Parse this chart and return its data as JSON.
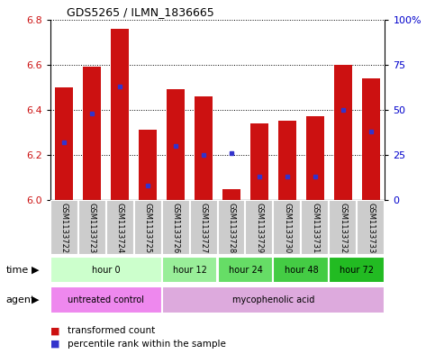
{
  "title": "GDS5265 / ILMN_1836665",
  "samples": [
    "GSM1133722",
    "GSM1133723",
    "GSM1133724",
    "GSM1133725",
    "GSM1133726",
    "GSM1133727",
    "GSM1133728",
    "GSM1133729",
    "GSM1133730",
    "GSM1133731",
    "GSM1133732",
    "GSM1133733"
  ],
  "transformed_counts": [
    6.5,
    6.59,
    6.76,
    6.31,
    6.49,
    6.46,
    6.05,
    6.34,
    6.35,
    6.37,
    6.6,
    6.54
  ],
  "percentile_ranks": [
    32,
    48,
    63,
    8,
    30,
    25,
    26,
    13,
    13,
    13,
    50,
    38
  ],
  "ylim": [
    6.0,
    6.8
  ],
  "yticks": [
    6.0,
    6.2,
    6.4,
    6.6,
    6.8
  ],
  "y2ticks": [
    0,
    25,
    50,
    75,
    100
  ],
  "bar_color": "#cc1111",
  "blue_color": "#3333cc",
  "baseline": 6.0,
  "time_groups": [
    {
      "label": "hour 0",
      "start": 0,
      "end": 3
    },
    {
      "label": "hour 12",
      "start": 4,
      "end": 5
    },
    {
      "label": "hour 24",
      "start": 6,
      "end": 7
    },
    {
      "label": "hour 48",
      "start": 8,
      "end": 9
    },
    {
      "label": "hour 72",
      "start": 10,
      "end": 11
    }
  ],
  "time_colors": [
    "#ccffcc",
    "#99ee99",
    "#66dd66",
    "#44cc44",
    "#22bb22"
  ],
  "agent_groups": [
    {
      "label": "untreated control",
      "start": 0,
      "end": 3
    },
    {
      "label": "mycophenolic acid",
      "start": 4,
      "end": 11
    }
  ],
  "agent_colors": [
    "#ee88ee",
    "#ddaadd"
  ],
  "legend_red": "transformed count",
  "legend_blue": "percentile rank within the sample",
  "bar_color_left": "#cc1111",
  "axis_color_right": "#0000cc",
  "sample_box_color": "#cccccc",
  "sample_box_edge": "#ffffff"
}
